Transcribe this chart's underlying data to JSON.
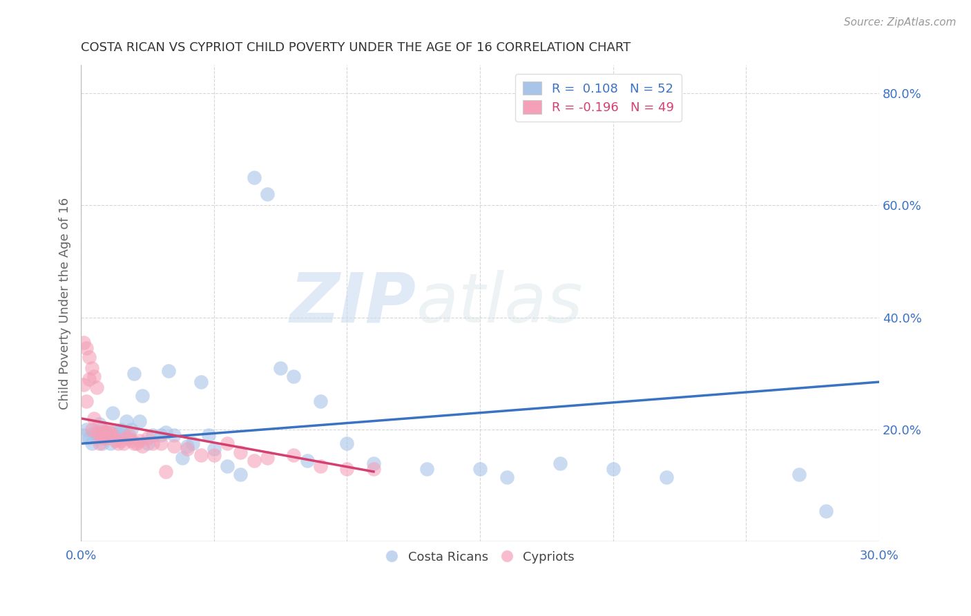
{
  "title": "COSTA RICAN VS CYPRIOT CHILD POVERTY UNDER THE AGE OF 16 CORRELATION CHART",
  "source": "Source: ZipAtlas.com",
  "ylabel": "Child Poverty Under the Age of 16",
  "xlim": [
    0.0,
    0.3
  ],
  "ylim": [
    0.0,
    0.85
  ],
  "x_ticks": [
    0.0,
    0.05,
    0.1,
    0.15,
    0.2,
    0.25,
    0.3
  ],
  "x_tick_labels": [
    "0.0%",
    "",
    "",
    "",
    "",
    "",
    "30.0%"
  ],
  "y_ticks_right": [
    0.2,
    0.4,
    0.6,
    0.8
  ],
  "y_tick_labels_right": [
    "20.0%",
    "40.0%",
    "60.0%",
    "80.0%"
  ],
  "blue_color": "#a8c4e8",
  "pink_color": "#f4a0b8",
  "blue_line_color": "#3a72c4",
  "pink_line_color": "#d44070",
  "legend_blue_label_R": "R =  0.108",
  "legend_blue_label_N": "N = 52",
  "legend_pink_label_R": "R = -0.196",
  "legend_pink_label_N": "N = 49",
  "costa_rica_R": 0.108,
  "cyprus_R": -0.196,
  "watermark_zip": "ZIP",
  "watermark_atlas": "atlas",
  "background_color": "#ffffff",
  "grid_color": "#cccccc",
  "blue_scatter_x": [
    0.001,
    0.002,
    0.003,
    0.004,
    0.005,
    0.006,
    0.007,
    0.008,
    0.009,
    0.01,
    0.011,
    0.012,
    0.013,
    0.014,
    0.015,
    0.016,
    0.017,
    0.018,
    0.019,
    0.02,
    0.022,
    0.023,
    0.025,
    0.027,
    0.03,
    0.032,
    0.033,
    0.035,
    0.038,
    0.04,
    0.042,
    0.045,
    0.048,
    0.05,
    0.055,
    0.06,
    0.065,
    0.07,
    0.075,
    0.08,
    0.085,
    0.09,
    0.1,
    0.11,
    0.13,
    0.15,
    0.16,
    0.18,
    0.2,
    0.22,
    0.27,
    0.28
  ],
  "blue_scatter_y": [
    0.19,
    0.2,
    0.185,
    0.175,
    0.195,
    0.185,
    0.21,
    0.175,
    0.195,
    0.195,
    0.175,
    0.23,
    0.195,
    0.195,
    0.2,
    0.195,
    0.215,
    0.185,
    0.2,
    0.3,
    0.215,
    0.26,
    0.175,
    0.19,
    0.19,
    0.195,
    0.305,
    0.19,
    0.15,
    0.17,
    0.175,
    0.285,
    0.19,
    0.165,
    0.135,
    0.12,
    0.65,
    0.62,
    0.31,
    0.295,
    0.145,
    0.25,
    0.175,
    0.14,
    0.13,
    0.13,
    0.115,
    0.14,
    0.13,
    0.115,
    0.12,
    0.055
  ],
  "pink_scatter_x": [
    0.001,
    0.001,
    0.002,
    0.002,
    0.003,
    0.003,
    0.004,
    0.004,
    0.005,
    0.005,
    0.006,
    0.006,
    0.007,
    0.007,
    0.008,
    0.008,
    0.009,
    0.009,
    0.01,
    0.01,
    0.011,
    0.012,
    0.013,
    0.014,
    0.015,
    0.016,
    0.017,
    0.018,
    0.019,
    0.02,
    0.021,
    0.022,
    0.023,
    0.025,
    0.027,
    0.03,
    0.032,
    0.035,
    0.04,
    0.045,
    0.05,
    0.055,
    0.06,
    0.065,
    0.07,
    0.08,
    0.09,
    0.1,
    0.11
  ],
  "pink_scatter_y": [
    0.355,
    0.28,
    0.345,
    0.25,
    0.33,
    0.29,
    0.31,
    0.2,
    0.295,
    0.22,
    0.275,
    0.195,
    0.195,
    0.175,
    0.2,
    0.185,
    0.195,
    0.185,
    0.2,
    0.185,
    0.195,
    0.19,
    0.18,
    0.175,
    0.18,
    0.175,
    0.185,
    0.19,
    0.18,
    0.175,
    0.175,
    0.18,
    0.17,
    0.185,
    0.175,
    0.175,
    0.125,
    0.17,
    0.165,
    0.155,
    0.155,
    0.175,
    0.16,
    0.145,
    0.15,
    0.155,
    0.135,
    0.13,
    0.13
  ],
  "blue_line_x": [
    0.0,
    0.3
  ],
  "blue_line_y": [
    0.175,
    0.285
  ],
  "pink_line_x": [
    0.0,
    0.11
  ],
  "pink_line_y": [
    0.22,
    0.125
  ]
}
